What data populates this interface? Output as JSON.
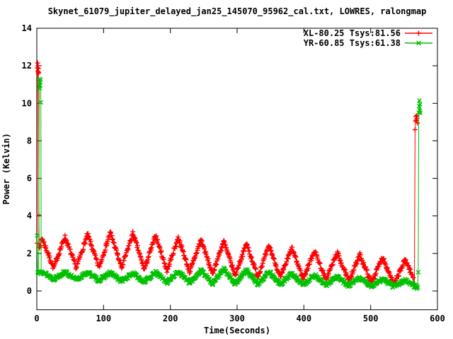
{
  "window": {
    "background": "#ffffff",
    "foreground": "#000000"
  },
  "chart_data": {
    "type": "scatter",
    "title": "Skynet_61079_jupiter_delayed_jan25_145070_95962_cal.txt, LOWRES, ralongmap",
    "xlabel": "Time(Seconds)",
    "ylabel": "Power (Kelvin)",
    "xlim": [
      0,
      600
    ],
    "ylim": [
      -1,
      14
    ],
    "x_ticks": [
      0,
      100,
      200,
      300,
      400,
      500,
      600
    ],
    "y_ticks": [
      0,
      2,
      4,
      6,
      8,
      10,
      12,
      14
    ],
    "grid": false,
    "legend_position": "top-right-inside",
    "marker_style": "linespoints",
    "series": [
      {
        "name": "XL-80.25 Tsys:81.56",
        "color": "#ff0000",
        "marker": "plus",
        "start_spike_points": [
          [
            0.6,
            2.55
          ],
          [
            1.0,
            11.9
          ],
          [
            1.3,
            12.15
          ],
          [
            1.6,
            11.7
          ],
          [
            1.9,
            12.0
          ],
          [
            2.2,
            11.6
          ],
          [
            2.5,
            11.85
          ],
          [
            2.8,
            11.65
          ],
          [
            3.1,
            4.05
          ],
          [
            3.5,
            2.5
          ],
          [
            4.0,
            2.3
          ]
        ],
        "end_spike_points": [
          [
            565.5,
            0.4
          ],
          [
            566.5,
            8.6
          ],
          [
            567.2,
            9.05
          ],
          [
            567.8,
            9.3
          ],
          [
            568.4,
            9.1
          ],
          [
            569.0,
            9.35
          ],
          [
            569.6,
            9.2
          ],
          [
            570.2,
            8.95
          ]
        ],
        "oscillation_model": {
          "t_start": 4.5,
          "t_end": 564,
          "sample_step": 0.7,
          "period_seconds": 34,
          "first_peak_time": 8,
          "mean_keyframes": [
            [
              4.5,
              2.0
            ],
            [
              120,
              2.2
            ],
            [
              300,
              1.7
            ],
            [
              470,
              1.25
            ],
            [
              564,
              0.95
            ]
          ],
          "amp_keyframes": [
            [
              4.5,
              0.78
            ],
            [
              120,
              0.95
            ],
            [
              300,
              0.88
            ],
            [
              470,
              0.72
            ],
            [
              564,
              0.7
            ]
          ],
          "noise": 0.12,
          "seed": 7
        }
      },
      {
        "name": "YR-60.85 Tsys:61.38",
        "color": "#00c000",
        "marker": "cross",
        "start_spike_points": [
          [
            0.5,
            2.95
          ],
          [
            1.2,
            1.0
          ],
          [
            2.0,
            0.9
          ],
          [
            2.8,
            1.05
          ],
          [
            3.6,
            10.9
          ],
          [
            4.0,
            11.3
          ],
          [
            4.4,
            10.8
          ],
          [
            4.8,
            11.15
          ],
          [
            5.2,
            10.95
          ],
          [
            5.6,
            11.25
          ],
          [
            6.0,
            10.05
          ],
          [
            6.6,
            1.0
          ]
        ],
        "end_spike_points": [
          [
            570.5,
            0.18
          ],
          [
            571.3,
            1.0
          ],
          [
            572.0,
            9.5
          ],
          [
            572.5,
            9.85
          ],
          [
            573.0,
            10.15
          ],
          [
            573.5,
            9.6
          ],
          [
            574.0,
            9.95
          ],
          [
            574.5,
            9.5
          ]
        ],
        "oscillation_model": {
          "t_start": 7,
          "t_end": 570,
          "sample_step": 0.7,
          "period_seconds": 34,
          "first_peak_time": 8,
          "mean_keyframes": [
            [
              7,
              0.85
            ],
            [
              150,
              0.72
            ],
            [
              290,
              0.78
            ],
            [
              470,
              0.5
            ],
            [
              570,
              0.38
            ]
          ],
          "amp_keyframes": [
            [
              7,
              0.2
            ],
            [
              150,
              0.22
            ],
            [
              290,
              0.4
            ],
            [
              470,
              0.22
            ],
            [
              570,
              0.18
            ]
          ],
          "noise": 0.09,
          "seed": 13
        }
      }
    ]
  }
}
